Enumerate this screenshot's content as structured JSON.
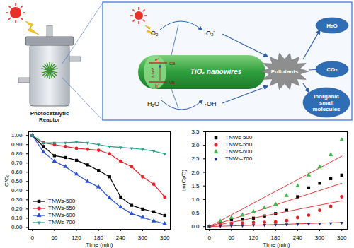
{
  "diagram": {
    "reactor_label": [
      "Photocatalytic",
      "Reactor"
    ],
    "oxygen": "O₂",
    "superoxide": "·O₂⁻",
    "water": "H₂O",
    "hydroxyl": "·OH",
    "electron": "e⁻",
    "hole": "h⁺",
    "conduction_band": "CB",
    "valence_band": "VB",
    "band_gap": "3.0eV",
    "nanowire_label": "TiO₂ nanowires",
    "pollutants": "Pollutants",
    "products": [
      [
        "H₂O"
      ],
      [
        "CO₂"
      ],
      [
        "Inorganic",
        "small",
        "molecules"
      ]
    ]
  },
  "chart_data": [
    {
      "type": "line",
      "xlabel": "Time (min)",
      "ylabel": "C/C₀",
      "x": [
        0,
        30,
        60,
        90,
        120,
        150,
        180,
        210,
        240,
        270,
        300,
        330,
        360
      ],
      "xlim": [
        -10,
        375
      ],
      "ylim": [
        -0.02,
        1.04
      ],
      "xticks": [
        0,
        60,
        120,
        180,
        240,
        300,
        360
      ],
      "yticks": [
        {
          "value": 0,
          "label": "0.00"
        },
        {
          "value": 0.1,
          "label": "0.10"
        },
        {
          "value": 0.2,
          "label": "0.20"
        },
        {
          "value": 0.3,
          "label": "0.30"
        },
        {
          "value": 0.4,
          "label": "0.40"
        },
        {
          "value": 0.5,
          "label": "0.50"
        },
        {
          "value": 0.6,
          "label": "0.60"
        },
        {
          "value": 0.7,
          "label": "0.70"
        },
        {
          "value": 0.8,
          "label": "0.80"
        },
        {
          "value": 0.9,
          "label": "0.90"
        },
        {
          "value": 1,
          "label": "1.00"
        }
      ],
      "legend": "lower left",
      "series": [
        {
          "name": "TNWs-500",
          "color": "#000000",
          "marker": "square",
          "line_style": "solid",
          "values": [
            1.0,
            0.88,
            0.78,
            0.76,
            0.73,
            0.68,
            0.62,
            0.55,
            0.33,
            0.24,
            0.2,
            0.17,
            0.13
          ]
        },
        {
          "name": "TNWs-550",
          "color": "#e0232b",
          "marker": "circle",
          "line_style": "solid",
          "values": [
            1.0,
            0.92,
            0.9,
            0.88,
            0.86,
            0.85,
            0.84,
            0.8,
            0.72,
            0.66,
            0.55,
            0.47,
            0.33
          ]
        },
        {
          "name": "TNWs-600",
          "color": "#2a4fc8",
          "marker": "triangle",
          "line_style": "solid",
          "values": [
            1.0,
            0.82,
            0.72,
            0.66,
            0.58,
            0.5,
            0.44,
            0.32,
            0.22,
            0.15,
            0.11,
            0.07,
            0.04
          ]
        },
        {
          "name": "TNWs-700",
          "color": "#2a9d8c",
          "marker": "triangle-down",
          "line_style": "solid",
          "values": [
            1.0,
            0.92,
            0.92,
            0.92,
            0.93,
            0.92,
            0.9,
            0.88,
            0.87,
            0.86,
            0.85,
            0.83,
            0.8
          ]
        }
      ]
    },
    {
      "type": "scatter",
      "xlabel": "Time (min)",
      "ylabel": "Ln(C₀/C)",
      "x": [
        0,
        30,
        60,
        90,
        120,
        150,
        180,
        210,
        240,
        270,
        300,
        330,
        360
      ],
      "xlim": [
        -10,
        375
      ],
      "ylim": [
        -0.1,
        3.5
      ],
      "xticks": [
        0,
        60,
        120,
        180,
        240,
        300,
        360
      ],
      "yticks": [
        {
          "value": 0,
          "label": "0.0"
        },
        0.5,
        {
          "value": 1,
          "label": "1.0"
        },
        1.5,
        {
          "value": 2,
          "label": "2.0"
        },
        2.5,
        {
          "value": 3,
          "label": "3.0"
        },
        3.5
      ],
      "legend": "upper left",
      "series": [
        {
          "name": "TNWs-500",
          "color": "#000000",
          "marker": "square",
          "values": [
            0,
            0.13,
            0.25,
            0.27,
            0.31,
            0.39,
            0.48,
            0.6,
            1.1,
            1.43,
            1.6,
            1.77,
            1.9
          ],
          "fit": {
            "color": "#e03a3a",
            "line_style": "solid",
            "x": [
              0,
              360
            ],
            "values": [
              0,
              1.6
            ]
          }
        },
        {
          "name": "TNWs-550",
          "color": "#e0232b",
          "marker": "circle",
          "values": [
            0,
            0.08,
            0.11,
            0.13,
            0.15,
            0.16,
            0.17,
            0.22,
            0.33,
            0.42,
            0.6,
            0.75,
            1.1
          ],
          "fit": {
            "color": "#e03a3a",
            "line_style": "solid",
            "x": [
              0,
              360
            ],
            "values": [
              0,
              0.95
            ]
          }
        },
        {
          "name": "TNWs-600",
          "color": "#3db54a",
          "marker": "triangle",
          "values": [
            0,
            0.2,
            0.33,
            0.42,
            0.55,
            0.69,
            0.82,
            1.14,
            1.5,
            1.9,
            2.2,
            2.65,
            3.2
          ],
          "fit": {
            "color": "#e03a3a",
            "line_style": "solid",
            "x": [
              0,
              360
            ],
            "values": [
              0,
              2.6
            ]
          }
        },
        {
          "name": "TNWs-700",
          "color": "#1f2a7a",
          "marker": "triangle-down",
          "values": [
            0,
            0.02,
            0.03,
            0.04,
            0.05,
            0.06,
            0.07,
            0.08,
            0.09,
            0.1,
            0.11,
            0.12,
            0.14
          ],
          "fit": {
            "color": "#e03a3a",
            "line_style": "solid",
            "x": [
              0,
              360
            ],
            "values": [
              0,
              0.15
            ]
          }
        }
      ]
    }
  ]
}
